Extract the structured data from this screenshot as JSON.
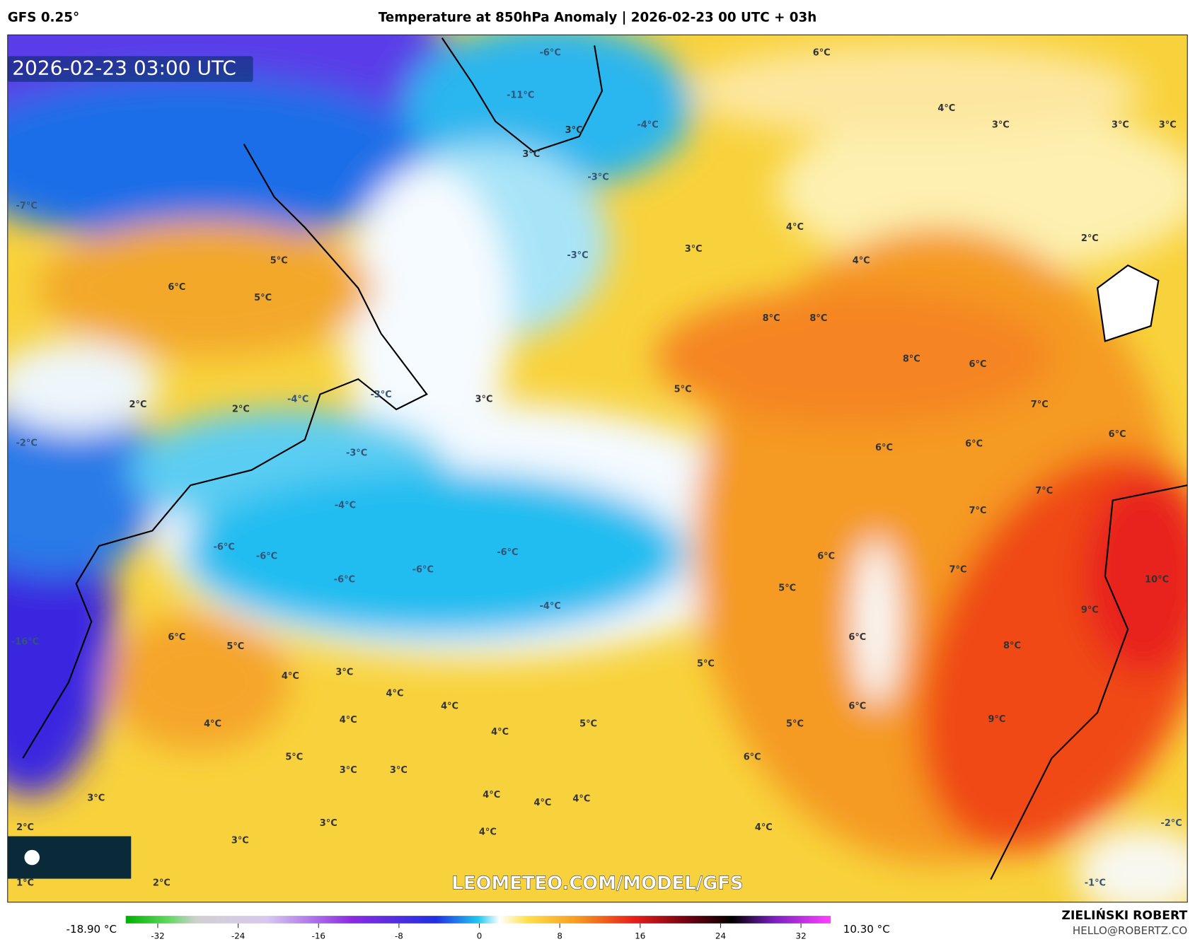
{
  "header": {
    "model": "GFS 0.25°",
    "title": "Temperature at 850hPa Anomaly | 2026-02-23 00 UTC + 03h"
  },
  "map": {
    "timestamp": "2026-02-23 03:00 UTC",
    "watermark": "LEOMETEO.COM/MODEL/GFS",
    "labels": [
      "-6°C",
      "-11°C",
      "-4°C",
      "3°C",
      "3°C",
      "-3°C",
      "-3°C",
      "6°C",
      "4°C",
      "3°C",
      "3°C",
      "3°C",
      "-7°C",
      "5°C",
      "6°C",
      "5°C",
      "3°C",
      "4°C",
      "4°C",
      "2°C",
      "8°C",
      "8°C",
      "8°C",
      "6°C",
      "2°C",
      "2°C",
      "-4°C",
      "-3°C",
      "3°C",
      "5°C",
      "7°C",
      "-2°C",
      "-3°C",
      "6°C",
      "6°C",
      "6°C",
      "-4°C",
      "7°C",
      "-6°C",
      "-6°C",
      "-6°C",
      "-6°C",
      "-6°C",
      "7°C",
      "6°C",
      "5°C",
      "7°C",
      "10°C",
      "-4°C",
      "9°C",
      "-16°C",
      "6°C",
      "5°C",
      "6°C",
      "8°C",
      "4°C",
      "3°C",
      "4°C",
      "5°C",
      "4°C",
      "6°C",
      "4°C",
      "4°C",
      "5°C",
      "4°C",
      "5°C",
      "9°C",
      "5°C",
      "6°C",
      "3°C",
      "3°C",
      "3°C",
      "4°C",
      "4°C",
      "4°C",
      "2°C",
      "3°C",
      "4°C",
      "4°C",
      "-2°C",
      "3°C",
      "1°C",
      "2°C",
      "-1°C"
    ]
  },
  "colorbar": {
    "min_label": "-18.90 °C",
    "max_label": "10.30 °C",
    "ticks": [
      -32,
      -24,
      -16,
      -8,
      0,
      8,
      16,
      24,
      32
    ]
  },
  "credits": {
    "name": "ZIELIŃSKI ROBERT",
    "email": "HELLO@ROBERTZ.CO"
  }
}
